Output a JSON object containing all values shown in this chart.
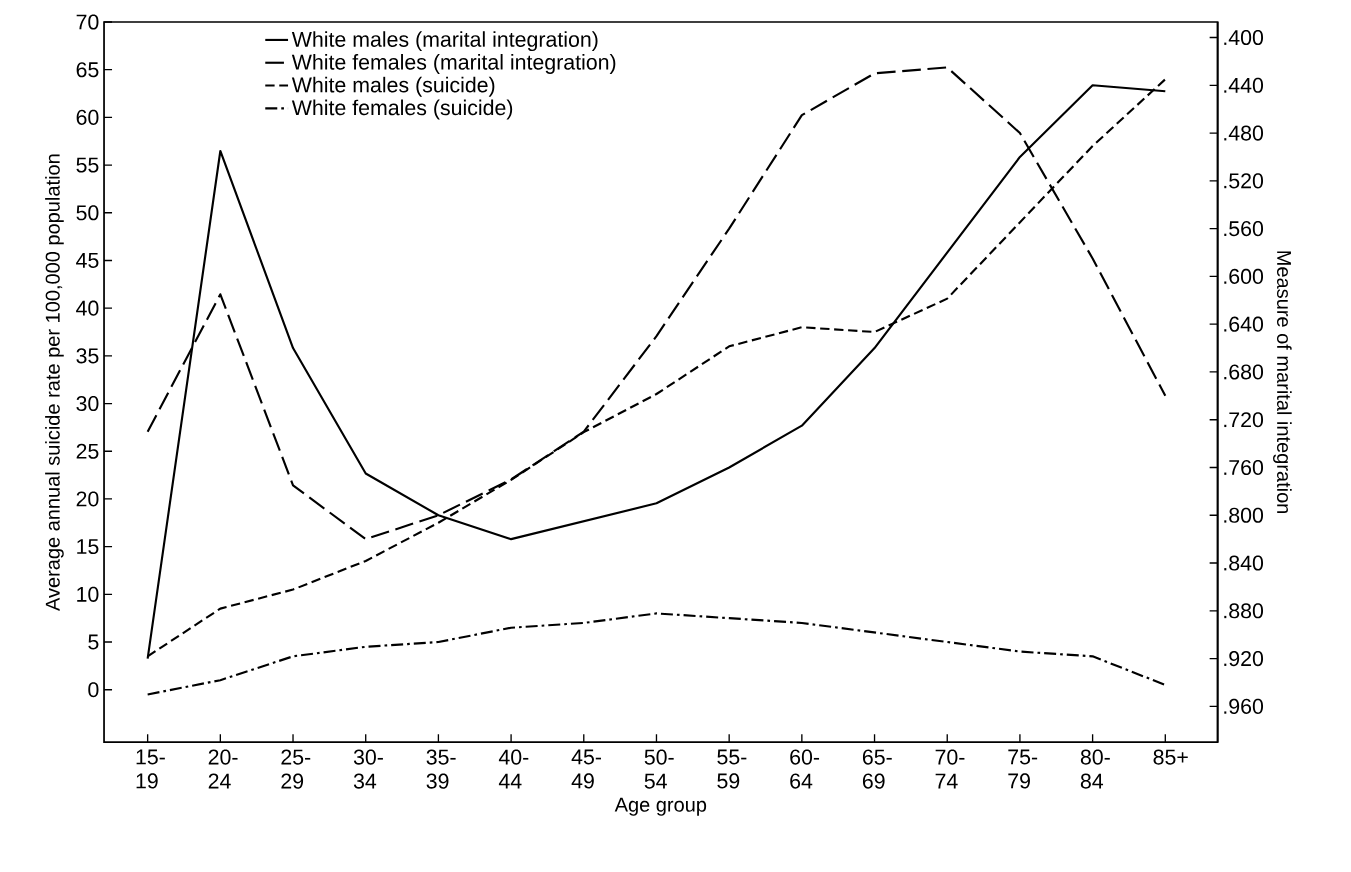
{
  "chart_data": {
    "type": "line",
    "xlabel": "Age group",
    "ylabel": "Average annual suicide rate per 100,000 population",
    "y2label": "Measure of marital integration",
    "categories": [
      "15- 19",
      "20- 24",
      "25- 29",
      "30- 34",
      "35- 39",
      "40- 44",
      "45- 49",
      "50- 54",
      "55- 59",
      "60- 64",
      "65- 69",
      "70- 74",
      "75- 79",
      "80- 84",
      "85+"
    ],
    "series": [
      {
        "name": "White males (marital integration)",
        "color": "#000000",
        "line_style": "solid",
        "axis": "y2",
        "values": [
          0.92,
          0.495,
          0.66,
          0.765,
          0.8,
          0.82,
          0.805,
          0.79,
          0.76,
          0.725,
          0.66,
          0.58,
          0.5,
          0.44,
          0.445
        ]
      },
      {
        "name": "White females (marital integration)",
        "color": "#000000",
        "line_style": "long dashed",
        "axis": "y2",
        "values": [
          0.73,
          0.615,
          0.775,
          0.82,
          0.8,
          0.77,
          0.73,
          0.65,
          0.56,
          0.465,
          0.43,
          0.425,
          0.48,
          0.585,
          0.7
        ]
      },
      {
        "name": "White males (suicide)",
        "color": "#000000",
        "line_style": "dashed",
        "values": [
          3.5,
          8.5,
          10.5,
          13.5,
          17.5,
          22,
          27,
          31,
          36,
          38,
          37.5,
          41,
          49,
          57,
          64
        ]
      },
      {
        "name": "White females (suicide)",
        "color": "#000000",
        "line_style": "dash dot",
        "values": [
          -0.5,
          1,
          3.5,
          4.5,
          5,
          6.5,
          7,
          8,
          7.5,
          7,
          6,
          5,
          4,
          3.5,
          0.5
        ]
      }
    ],
    "ylim": [
      -5.5,
      70
    ],
    "yticks": [
      0,
      5,
      10,
      15,
      20,
      25,
      30,
      35,
      40,
      45,
      50,
      55,
      60,
      65,
      70
    ],
    "y2lim": [
      0.99,
      0.387
    ],
    "y2ticks": [
      {
        "value": 0.4,
        "label": ".400"
      },
      {
        "value": 0.44,
        "label": ".440"
      },
      {
        "value": 0.48,
        "label": ".480"
      },
      {
        "value": 0.52,
        "label": ".520"
      },
      {
        "value": 0.56,
        "label": ".560"
      },
      {
        "value": 0.6,
        "label": ".600"
      },
      {
        "value": 0.64,
        "label": ".640"
      },
      {
        "value": 0.68,
        "label": ".680"
      },
      {
        "value": 0.72,
        "label": ".720"
      },
      {
        "value": 0.76,
        "label": ".760"
      },
      {
        "value": 0.8,
        "label": ".800"
      },
      {
        "value": 0.84,
        "label": ".840"
      },
      {
        "value": 0.88,
        "label": ".880"
      },
      {
        "value": 0.92,
        "label": ".920"
      },
      {
        "value": 0.96,
        "label": ".960"
      }
    ],
    "legend": "top"
  }
}
